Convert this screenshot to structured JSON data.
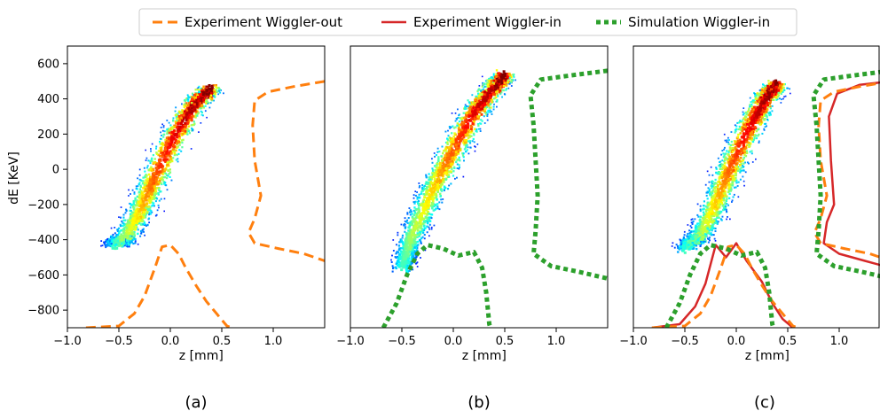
{
  "legend": {
    "entries": [
      {
        "label": "Experiment Wiggler-out",
        "color": "#ff7f0e",
        "style": "dashed"
      },
      {
        "label": "Experiment Wiggler-in",
        "color": "#d62728",
        "style": "solid"
      },
      {
        "label": "Simulation Wiggler-in",
        "color": "#2ca02c",
        "style": "dotted"
      }
    ]
  },
  "chart_data": [
    {
      "type": "scatter",
      "panel_label": "(a)",
      "xlabel": "z [mm]",
      "ylabel": "dE [KeV]",
      "xlim": [
        -1.0,
        1.5
      ],
      "ylim": [
        -900,
        700
      ],
      "xticks": [
        "-1.0",
        "-0.5",
        "0.0",
        "0.5",
        "1.0"
      ],
      "yticks": [
        "600",
        "400",
        "200",
        "0",
        "−200",
        "−400",
        "−600",
        "−800"
      ],
      "colormap": "jet",
      "phase_space_spine": [
        [
          -0.55,
          -420
        ],
        [
          -0.45,
          -400
        ],
        [
          -0.3,
          -250
        ],
        [
          -0.15,
          -50
        ],
        [
          0.05,
          200
        ],
        [
          0.25,
          380
        ],
        [
          0.4,
          460
        ]
      ],
      "series": [
        {
          "name": "Experiment Wiggler-out",
          "role": "current-profile",
          "points": [
            [
              -0.82,
              -900
            ],
            [
              -0.5,
              -890
            ],
            [
              -0.35,
              -820
            ],
            [
              -0.25,
              -720
            ],
            [
              -0.15,
              -560
            ],
            [
              -0.08,
              -440
            ],
            [
              0.0,
              -430
            ],
            [
              0.08,
              -480
            ],
            [
              0.15,
              -560
            ],
            [
              0.25,
              -660
            ],
            [
              0.35,
              -750
            ],
            [
              0.45,
              -820
            ],
            [
              0.55,
              -890
            ],
            [
              0.6,
              -900
            ]
          ]
        },
        {
          "name": "Experiment Wiggler-out",
          "role": "energy-profile",
          "points": [
            [
              1.5,
              500
            ],
            [
              1.2,
              470
            ],
            [
              0.95,
              440
            ],
            [
              0.82,
              390
            ],
            [
              0.8,
              250
            ],
            [
              0.82,
              50
            ],
            [
              0.88,
              -150
            ],
            [
              0.82,
              -280
            ],
            [
              0.76,
              -360
            ],
            [
              0.82,
              -420
            ],
            [
              1.05,
              -450
            ],
            [
              1.3,
              -480
            ],
            [
              1.5,
              -520
            ]
          ]
        }
      ]
    },
    {
      "type": "scatter",
      "panel_label": "(b)",
      "xlabel": "z [mm]",
      "xlim": [
        -1.0,
        1.5
      ],
      "ylim": [
        -900,
        700
      ],
      "xticks": [
        "-1.0",
        "-0.5",
        "0.0",
        "0.5",
        "1.0"
      ],
      "colormap": "jet",
      "phase_space_spine": [
        [
          -0.5,
          -560
        ],
        [
          -0.4,
          -380
        ],
        [
          -0.2,
          -120
        ],
        [
          0.0,
          110
        ],
        [
          0.2,
          320
        ],
        [
          0.4,
          470
        ],
        [
          0.5,
          530
        ]
      ],
      "series": [
        {
          "name": "Simulation Wiggler-in",
          "role": "current-profile",
          "points": [
            [
              -0.68,
              -900
            ],
            [
              -0.55,
              -760
            ],
            [
              -0.45,
              -600
            ],
            [
              -0.35,
              -480
            ],
            [
              -0.25,
              -430
            ],
            [
              -0.1,
              -450
            ],
            [
              0.05,
              -490
            ],
            [
              0.2,
              -470
            ],
            [
              0.28,
              -560
            ],
            [
              0.32,
              -700
            ],
            [
              0.35,
              -880
            ],
            [
              0.36,
              -900
            ]
          ]
        },
        {
          "name": "Simulation Wiggler-in",
          "role": "energy-profile",
          "points": [
            [
              1.5,
              560
            ],
            [
              1.1,
              530
            ],
            [
              0.85,
              510
            ],
            [
              0.75,
              420
            ],
            [
              0.78,
              250
            ],
            [
              0.8,
              50
            ],
            [
              0.82,
              -150
            ],
            [
              0.8,
              -350
            ],
            [
              0.78,
              -480
            ],
            [
              0.95,
              -550
            ],
            [
              1.2,
              -580
            ],
            [
              1.5,
              -620
            ]
          ]
        }
      ]
    },
    {
      "type": "scatter",
      "panel_label": "(c)",
      "xlabel": "z [mm]",
      "xlim": [
        -1.0,
        1.5
      ],
      "ylim": [
        -900,
        700
      ],
      "xticks": [
        "-1.0",
        "-0.5",
        "0.0",
        "0.5",
        "1.0"
      ],
      "colormap": "jet",
      "phase_space_spine": [
        [
          -0.5,
          -440
        ],
        [
          -0.35,
          -380
        ],
        [
          -0.2,
          -200
        ],
        [
          -0.05,
          20
        ],
        [
          0.15,
          260
        ],
        [
          0.3,
          420
        ],
        [
          0.4,
          480
        ]
      ],
      "series": [
        {
          "name": "Experiment Wiggler-in",
          "role": "current-profile",
          "points": [
            [
              -0.82,
              -900
            ],
            [
              -0.55,
              -880
            ],
            [
              -0.4,
              -780
            ],
            [
              -0.3,
              -650
            ],
            [
              -0.2,
              -430
            ],
            [
              -0.1,
              -500
            ],
            [
              0.0,
              -420
            ],
            [
              0.1,
              -520
            ],
            [
              0.25,
              -640
            ],
            [
              0.35,
              -760
            ],
            [
              0.45,
              -850
            ],
            [
              0.55,
              -900
            ]
          ]
        },
        {
          "name": "Experiment Wiggler-in",
          "role": "energy-profile",
          "points": [
            [
              1.5,
              500
            ],
            [
              1.2,
              480
            ],
            [
              0.98,
              430
            ],
            [
              0.9,
              300
            ],
            [
              0.92,
              50
            ],
            [
              0.95,
              -200
            ],
            [
              0.88,
              -300
            ],
            [
              0.85,
              -420
            ],
            [
              1.0,
              -480
            ],
            [
              1.25,
              -520
            ],
            [
              1.5,
              -560
            ]
          ]
        },
        {
          "name": "Experiment Wiggler-out",
          "role": "current-profile",
          "points": [
            [
              -0.82,
              -900
            ],
            [
              -0.5,
              -890
            ],
            [
              -0.35,
              -820
            ],
            [
              -0.25,
              -720
            ],
            [
              -0.15,
              -560
            ],
            [
              -0.08,
              -440
            ],
            [
              0.0,
              -430
            ],
            [
              0.08,
              -480
            ],
            [
              0.15,
              -560
            ],
            [
              0.25,
              -660
            ],
            [
              0.35,
              -750
            ],
            [
              0.45,
              -820
            ],
            [
              0.55,
              -890
            ],
            [
              0.6,
              -900
            ]
          ]
        },
        {
          "name": "Experiment Wiggler-out",
          "role": "energy-profile",
          "points": [
            [
              1.5,
              500
            ],
            [
              1.2,
              470
            ],
            [
              0.95,
              440
            ],
            [
              0.82,
              390
            ],
            [
              0.8,
              250
            ],
            [
              0.82,
              50
            ],
            [
              0.88,
              -150
            ],
            [
              0.82,
              -280
            ],
            [
              0.76,
              -360
            ],
            [
              0.82,
              -420
            ],
            [
              1.05,
              -450
            ],
            [
              1.3,
              -480
            ],
            [
              1.5,
              -520
            ]
          ]
        },
        {
          "name": "Simulation Wiggler-in",
          "role": "current-profile",
          "points": [
            [
              -0.68,
              -900
            ],
            [
              -0.55,
              -760
            ],
            [
              -0.45,
              -600
            ],
            [
              -0.35,
              -480
            ],
            [
              -0.25,
              -430
            ],
            [
              -0.1,
              -450
            ],
            [
              0.05,
              -490
            ],
            [
              0.2,
              -470
            ],
            [
              0.28,
              -560
            ],
            [
              0.32,
              -700
            ],
            [
              0.35,
              -880
            ],
            [
              0.36,
              -900
            ]
          ]
        },
        {
          "name": "Simulation Wiggler-in",
          "role": "energy-profile",
          "points": [
            [
              1.5,
              560
            ],
            [
              1.1,
              530
            ],
            [
              0.85,
              510
            ],
            [
              0.75,
              420
            ],
            [
              0.78,
              250
            ],
            [
              0.8,
              50
            ],
            [
              0.82,
              -150
            ],
            [
              0.8,
              -350
            ],
            [
              0.78,
              -480
            ],
            [
              0.95,
              -550
            ],
            [
              1.2,
              -580
            ],
            [
              1.5,
              -620
            ]
          ]
        }
      ]
    }
  ]
}
